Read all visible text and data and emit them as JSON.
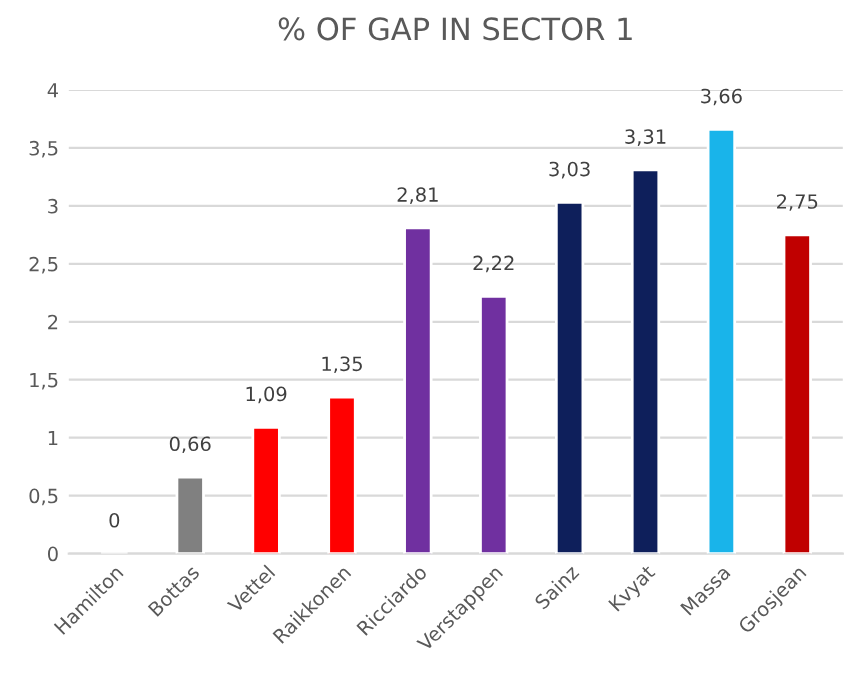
{
  "chart_data": {
    "type": "bar",
    "title": "% OF GAP IN SECTOR 1",
    "categories": [
      "Hamilton",
      "Bottas",
      "Vettel",
      "Raikkonen",
      "Ricciardo",
      "Verstappen",
      "Sainz",
      "Kvyat",
      "Massa",
      "Grosjean"
    ],
    "values": [
      0,
      0.66,
      1.09,
      1.35,
      2.81,
      2.22,
      3.03,
      3.31,
      3.66,
      2.75
    ],
    "value_labels": [
      "0",
      "0,66",
      "1,09",
      "1,35",
      "2,81",
      "2,22",
      "3,03",
      "3,31",
      "3,66",
      "2,75"
    ],
    "colors": [
      null,
      "#808080",
      "#ff0000",
      "#ff0000",
      "#7030a0",
      "#7030a0",
      "#0e1f5b",
      "#0e1f5b",
      "#19b4ea",
      "#c00000"
    ],
    "ylim": [
      0,
      4
    ],
    "yticks": [
      0,
      {
        "value": 0.5,
        "label": "0,5"
      },
      1,
      {
        "value": 1.5,
        "label": "1,5"
      },
      2,
      {
        "value": 2.5,
        "label": "2,5"
      },
      3,
      {
        "value": 3.5,
        "label": "3,5"
      },
      4
    ],
    "grid": "y"
  }
}
